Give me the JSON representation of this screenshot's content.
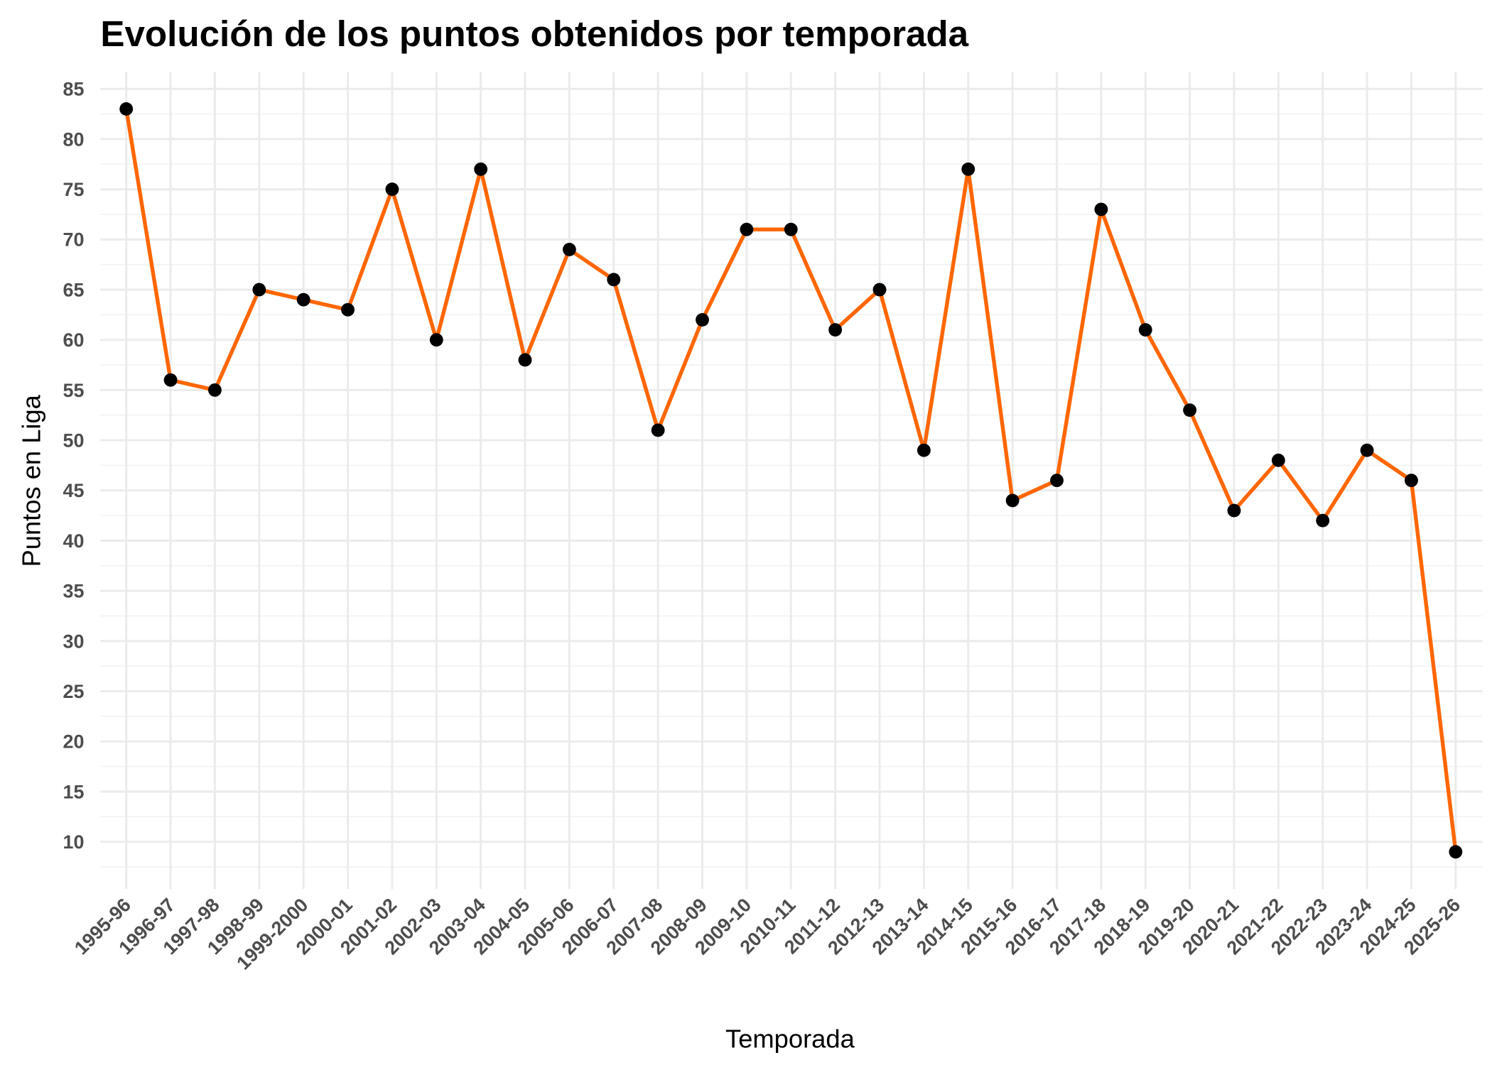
{
  "chart_data": {
    "type": "line",
    "title": "Evolución de los puntos obtenidos por temporada",
    "xlabel": "Temporada",
    "ylabel": "Puntos en Liga",
    "categories": [
      "1995-96",
      "1996-97",
      "1997-98",
      "1998-99",
      "1999-2000",
      "2000-01",
      "2001-02",
      "2002-03",
      "2003-04",
      "2004-05",
      "2005-06",
      "2006-07",
      "2007-08",
      "2008-09",
      "2009-10",
      "2010-11",
      "2011-12",
      "2012-13",
      "2013-14",
      "2014-15",
      "2015-16",
      "2016-17",
      "2017-18",
      "2018-19",
      "2019-20",
      "2020-21",
      "2021-22",
      "2022-23",
      "2023-24",
      "2024-25",
      "2025-26"
    ],
    "values": [
      83,
      56,
      55,
      65,
      64,
      63,
      75,
      60,
      77,
      58,
      69,
      66,
      51,
      62,
      71,
      71,
      61,
      65,
      49,
      77,
      44,
      46,
      73,
      61,
      53,
      43,
      48,
      42,
      49,
      46,
      9
    ],
    "yticks": [
      10,
      15,
      20,
      25,
      30,
      35,
      40,
      45,
      50,
      55,
      60,
      65,
      70,
      75,
      80,
      85
    ],
    "ylim": [
      5.3,
      86.7
    ],
    "grid": true,
    "line_color": "#FF6600",
    "point_color": "#000000"
  }
}
